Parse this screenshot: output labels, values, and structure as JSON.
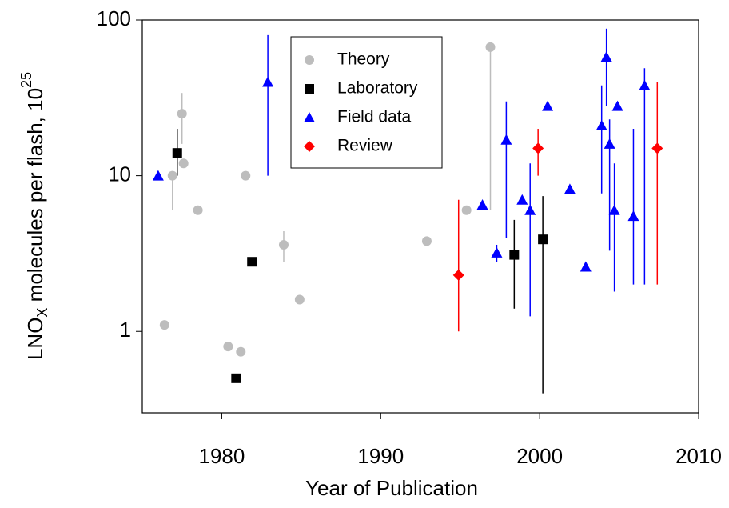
{
  "chart_data": {
    "type": "scatter",
    "xlabel": "Year of Publication",
    "ylabel": {
      "text": "LNO",
      "sub": "X",
      "rest": " molecules per flash, 10",
      "sup": "25"
    },
    "xlim": [
      1975,
      2010
    ],
    "xticks": [
      1980,
      1990,
      2000,
      2010
    ],
    "ylim": [
      0.3,
      100
    ],
    "yticks": [
      1,
      10,
      100
    ],
    "log_y": true,
    "grid": false,
    "legend": "top",
    "series": [
      {
        "name": "Theory",
        "color": "#bdbdbd",
        "marker": "circle",
        "x": [
          1976.4,
          1976.9,
          1977.6,
          1977.5,
          1978.5,
          1980.4,
          1981.2,
          1981.5,
          1983.9,
          1984.9,
          1992.9,
          1995.4,
          1996.9
        ],
        "values": [
          1.1,
          10,
          12,
          25,
          6,
          0.8,
          0.74,
          10,
          3.6,
          1.6,
          3.8,
          6,
          67
        ],
        "err_low": [
          null,
          6,
          null,
          16,
          null,
          null,
          null,
          null,
          2.8,
          null,
          null,
          null,
          6
        ],
        "err_high": [
          null,
          10,
          null,
          34,
          null,
          null,
          null,
          null,
          4.4,
          null,
          null,
          null,
          67
        ]
      },
      {
        "name": "Laboratory",
        "color": "#000000",
        "marker": "square",
        "x": [
          1977.2,
          1980.9,
          1981.9,
          1998.4,
          2000.2
        ],
        "values": [
          14,
          0.5,
          2.8,
          3.1,
          3.9
        ],
        "err_low": [
          10,
          null,
          null,
          1.4,
          0.4
        ],
        "err_high": [
          20,
          null,
          null,
          5.2,
          7.4
        ]
      },
      {
        "name": "Field data",
        "color": "#0000ff",
        "marker": "triangle",
        "x": [
          1976,
          1982.9,
          1997.3,
          1996.4,
          1997.9,
          1998.9,
          1999.4,
          2000.5,
          2001.9,
          2002.9,
          2003.9,
          2004.2,
          2004.4,
          2004.7,
          2004.9,
          2005.9,
          2006.6
        ],
        "values": [
          10,
          40,
          3.2,
          6.5,
          17,
          7,
          6,
          28,
          8.2,
          2.6,
          21,
          58,
          16,
          6,
          28,
          5.5,
          38
        ],
        "err_low": [
          null,
          10,
          2.8,
          null,
          4,
          null,
          1.25,
          null,
          null,
          null,
          7.7,
          28,
          3.3,
          1.8,
          null,
          2,
          2
        ],
        "err_high": [
          null,
          80,
          3.6,
          null,
          30,
          null,
          12,
          null,
          null,
          null,
          38,
          88,
          23,
          12,
          null,
          20,
          49
        ]
      },
      {
        "name": "Review",
        "color": "#ff0000",
        "marker": "diamond",
        "x": [
          1994.9,
          1999.9,
          2007.4
        ],
        "values": [
          2.3,
          15,
          15
        ],
        "err_low": [
          1,
          10,
          2
        ],
        "err_high": [
          7,
          20,
          40
        ]
      }
    ]
  }
}
